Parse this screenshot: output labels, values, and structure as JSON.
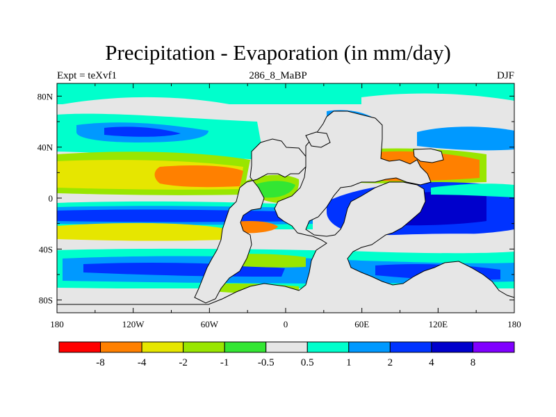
{
  "title": "Precipitation - Evaporation (in mm/day)",
  "subtitle_left": "Expt = teXvf1",
  "subtitle_center": "286_8_MaBP",
  "subtitle_right": "DJF",
  "chart_data": {
    "type": "heatmap",
    "map_projection": "cylindrical equidistant",
    "x_ticks": [
      "180",
      "120W",
      "60W",
      "0",
      "60E",
      "120E",
      "180"
    ],
    "y_ticks": [
      "80N",
      "40N",
      "0",
      "40S",
      "80S"
    ],
    "colorbar": {
      "levels": [
        "-8",
        "-4",
        "-2",
        "-1",
        "-0.5",
        "0.5",
        "1",
        "2",
        "4",
        "8"
      ],
      "colors": [
        "#ff0000",
        "#ff8000",
        "#e6e600",
        "#99e600",
        "#33e633",
        "#e6e6e6",
        "#00ffcc",
        "#0099ff",
        "#0033ff",
        "#0000cc",
        "#8000ff"
      ]
    },
    "bands": [
      {
        "lat_range": [
          90,
          55
        ],
        "class": "lightgray-cyan",
        "value_range": [
          -0.5,
          1
        ]
      },
      {
        "lat_range": [
          55,
          35
        ],
        "class": "blue",
        "value_range": [
          1,
          4
        ]
      },
      {
        "lat_range": [
          35,
          5
        ],
        "class": "yellow-orange",
        "value_range": [
          -4,
          -2
        ]
      },
      {
        "lat_range": [
          5,
          -15
        ],
        "class": "darkblue",
        "value_range": [
          4,
          8
        ]
      },
      {
        "lat_range": [
          -15,
          -35
        ],
        "class": "yellow",
        "value_range": [
          -2,
          -1
        ]
      },
      {
        "lat_range": [
          -35,
          -60
        ],
        "class": "blue",
        "value_range": [
          1,
          4
        ]
      },
      {
        "lat_range": [
          -60,
          -90
        ],
        "class": "lightgray",
        "value_range": [
          -0.5,
          0.5
        ]
      }
    ]
  }
}
